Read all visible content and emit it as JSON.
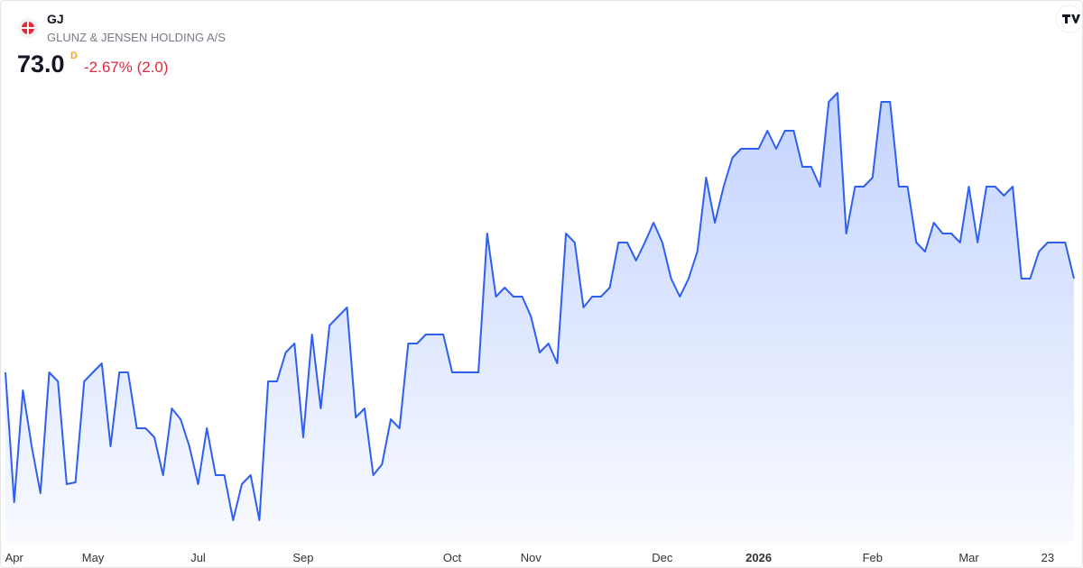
{
  "header": {
    "symbol": "GJ",
    "name": "GLUNZ & JENSEN HOLDING A/S",
    "price": "73.0",
    "period": "D",
    "change": "-2.67% (2.0)"
  },
  "chart_data": {
    "type": "area",
    "color": "#2f5ff0",
    "categories": [
      null,
      "Apr",
      null,
      null,
      null,
      null,
      null,
      null,
      null,
      null,
      "May",
      null,
      null,
      null,
      null,
      null,
      null,
      null,
      null,
      null,
      null,
      null,
      "Jul",
      null,
      null,
      null,
      null,
      null,
      null,
      null,
      null,
      null,
      null,
      null,
      "Sep",
      null,
      null,
      null,
      null,
      null,
      null,
      null,
      null,
      null,
      null,
      null,
      null,
      null,
      null,
      null,
      null,
      "Oct",
      null,
      null,
      null,
      null,
      null,
      null,
      null,
      null,
      "Nov",
      null,
      null,
      null,
      null,
      null,
      null,
      null,
      null,
      null,
      null,
      null,
      null,
      null,
      null,
      "Dec",
      null,
      null,
      null,
      null,
      null,
      null,
      null,
      null,
      null,
      null,
      "2026",
      null,
      null,
      null,
      null,
      null,
      null,
      null,
      null,
      null,
      null,
      null,
      null,
      "Feb",
      null,
      null,
      null,
      null,
      null,
      null,
      null,
      null,
      null,
      null,
      "Mar",
      null,
      null,
      null,
      null,
      null,
      null,
      null,
      null,
      "23",
      null,
      null,
      null
    ],
    "values": [
      67.8,
      60.6,
      66.8,
      63.7,
      61.1,
      67.8,
      67.3,
      61.6,
      61.7,
      67.3,
      67.8,
      68.3,
      63.7,
      67.8,
      67.8,
      64.7,
      64.7,
      64.2,
      62.1,
      65.8,
      65.2,
      63.7,
      61.6,
      64.7,
      62.1,
      62.1,
      59.6,
      61.6,
      62.1,
      59.6,
      67.3,
      67.3,
      68.9,
      69.4,
      64.2,
      69.9,
      65.8,
      70.4,
      70.9,
      71.4,
      65.3,
      65.8,
      62.1,
      62.7,
      65.2,
      64.7,
      69.4,
      69.4,
      69.9,
      69.9,
      69.9,
      67.8,
      67.8,
      67.8,
      67.8,
      75.5,
      72.0,
      72.5,
      72.0,
      72.0,
      70.9,
      68.9,
      69.4,
      68.3,
      75.5,
      75.0,
      71.4,
      72.0,
      72.0,
      72.5,
      75.0,
      75.0,
      74.0,
      75.0,
      76.1,
      75.0,
      73.0,
      72.0,
      73.0,
      74.5,
      78.6,
      76.1,
      78.1,
      79.7,
      80.2,
      80.2,
      80.2,
      81.2,
      80.2,
      81.2,
      81.2,
      79.2,
      79.2,
      78.1,
      82.8,
      83.3,
      75.5,
      78.1,
      78.1,
      78.6,
      82.8,
      82.8,
      78.1,
      78.1,
      75.0,
      74.5,
      76.1,
      75.5,
      75.5,
      75.0,
      78.1,
      75.0,
      78.1,
      78.1,
      77.6,
      78.1,
      73.0,
      73.0,
      74.5,
      75.0,
      75.0,
      75.0,
      73.0
    ]
  }
}
